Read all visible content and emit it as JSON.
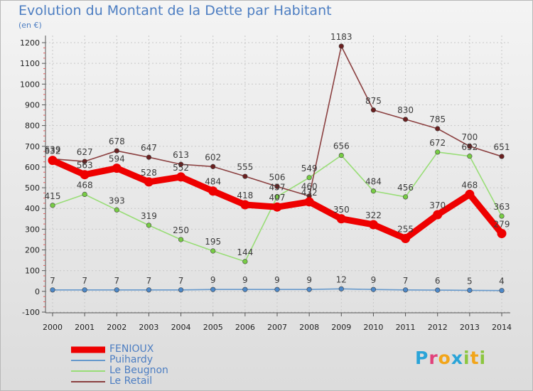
{
  "header": {
    "title": "Evolution du Montant de la Dette par Habitant",
    "subtitle": "(en €)"
  },
  "logo": {
    "text": "Proxiti",
    "letters": [
      {
        "ch": "P",
        "color": "#2aa4d8"
      },
      {
        "ch": "r",
        "color": "#e1417a"
      },
      {
        "ch": "o",
        "color": "#f2a51a"
      },
      {
        "ch": "x",
        "color": "#2aa4d8"
      },
      {
        "ch": "i",
        "color": "#8cc63f"
      },
      {
        "ch": "t",
        "color": "#f2a51a"
      },
      {
        "ch": "i",
        "color": "#8cc63f"
      }
    ]
  },
  "chart_data": {
    "type": "line",
    "title": "Evolution du Montant de la Dette par Habitant",
    "subtitle": "(en €)",
    "x": [
      "2000",
      "2001",
      "2002",
      "2003",
      "2004",
      "2005",
      "2006",
      "2007",
      "2008",
      "2009",
      "2010",
      "2011",
      "2012",
      "2013",
      "2014"
    ],
    "ylim": [
      -100,
      1200
    ],
    "yticks": [
      -100,
      0,
      100,
      200,
      300,
      400,
      500,
      600,
      700,
      800,
      900,
      1000,
      1100,
      1200
    ],
    "grid": true,
    "legend_position": "bottom-left",
    "series": [
      {
        "name": "FENIOUX",
        "color": "#ee0000",
        "marker": "#ee0000",
        "width": 9,
        "values": [
          632,
          563,
          594,
          528,
          552,
          484,
          418,
          407,
          432,
          350,
          322,
          255,
          370,
          468,
          279
        ]
      },
      {
        "name": "Puihardy",
        "color": "#6699cc",
        "marker": "#4d88c8",
        "width": 1.6,
        "values": [
          7,
          7,
          7,
          7,
          7,
          9,
          9,
          9,
          9,
          12,
          9,
          7,
          6,
          5,
          4
        ]
      },
      {
        "name": "Le Beugnon",
        "color": "#99dd77",
        "marker": "#77cc44",
        "width": 1.6,
        "values": [
          415,
          468,
          393,
          319,
          250,
          195,
          144,
          457,
          549,
          656,
          484,
          456,
          672,
          652,
          363
        ]
      },
      {
        "name": "Le Retail",
        "color": "#8b4040",
        "marker": "#6a1f1f",
        "width": 1.6,
        "values": [
          639,
          627,
          678,
          647,
          613,
          602,
          555,
          506,
          460,
          1183,
          875,
          830,
          785,
          700,
          651
        ]
      }
    ]
  }
}
